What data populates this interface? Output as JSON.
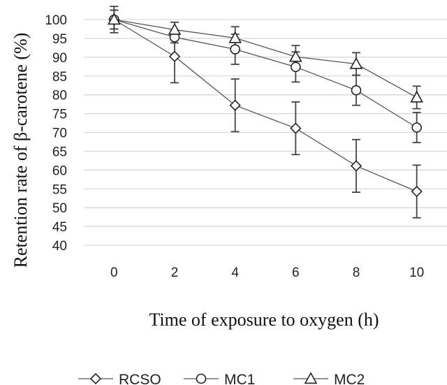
{
  "chart_data": {
    "type": "line",
    "xlabel": "Time of exposure to oxygen (h)",
    "ylabel": "Retention rate of β-carotene (%)",
    "categories": [
      "0",
      "2",
      "4",
      "6",
      "8",
      "10"
    ],
    "ylim": [
      40,
      100
    ],
    "yticks": [
      40,
      45,
      50,
      55,
      60,
      65,
      70,
      75,
      80,
      85,
      90,
      95,
      100
    ],
    "grid": true,
    "legend_position": "bottom",
    "series": [
      {
        "name": "RCSO",
        "marker": "diamond",
        "values": [
          100,
          90.2,
          77.2,
          71.1,
          61.1,
          54.3
        ],
        "errors": [
          3.5,
          7.0,
          7.0,
          7.0,
          7.0,
          7.0
        ]
      },
      {
        "name": "MC1",
        "marker": "circle",
        "values": [
          100,
          95.3,
          92.1,
          87.4,
          81.2,
          71.3
        ],
        "errors": [
          2.5,
          1.5,
          4.0,
          4.0,
          4.0,
          4.0
        ]
      },
      {
        "name": "MC2",
        "marker": "triangle",
        "values": [
          100,
          97.3,
          95.1,
          90.1,
          88.2,
          79.3
        ],
        "errors": [
          2.5,
          2.0,
          3.0,
          3.0,
          3.0,
          3.0
        ]
      }
    ],
    "colors": {
      "line": "#555555",
      "marker": "#222222",
      "error": "#444444",
      "grid": "#d9d9d9"
    }
  }
}
